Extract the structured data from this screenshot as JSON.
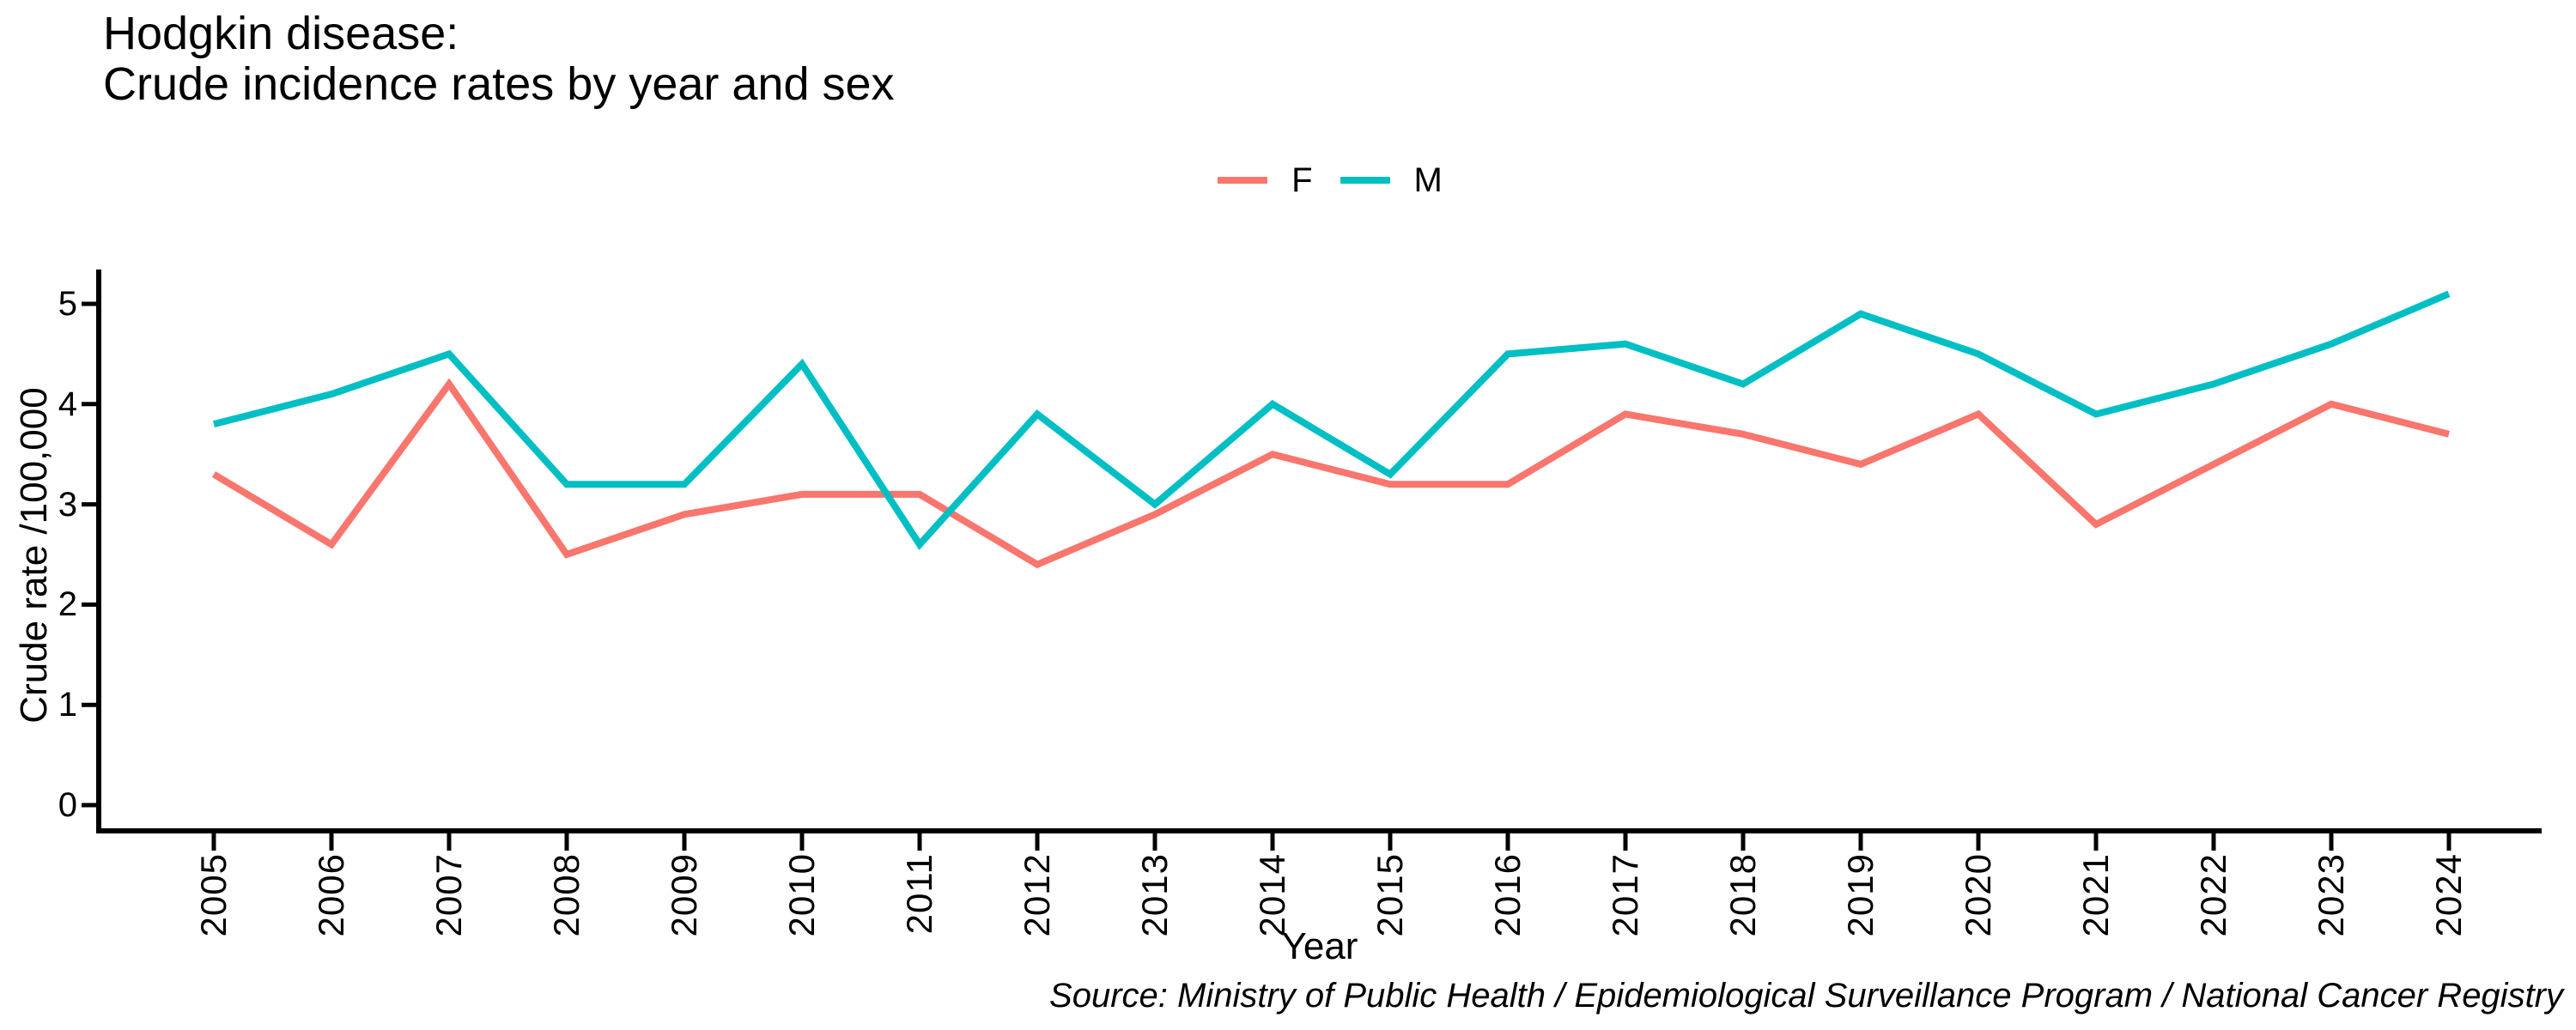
{
  "title": {
    "line1": "Hodgkin disease:",
    "line2": "Crude incidence rates by year and sex"
  },
  "legend": {
    "items": [
      {
        "label": "F",
        "color": "#F8766D"
      },
      {
        "label": "M",
        "color": "#00BFC4"
      }
    ]
  },
  "axes": {
    "y_title": "Crude rate /100,000",
    "x_title": "Year"
  },
  "source": "Source: Ministry of Public Health / Epidemiological Surveillance Program / National Cancer Registry",
  "colors": {
    "female_line": "#F8766D",
    "male_line": "#00BFC4",
    "axis": "#000000",
    "background": "#FFFFFF"
  },
  "chart_data": {
    "type": "line",
    "title": "Hodgkin disease: Crude incidence rates by year and sex",
    "xlabel": "Year",
    "ylabel": "Crude rate /100,000",
    "x": [
      2005,
      2006,
      2007,
      2008,
      2009,
      2010,
      2011,
      2012,
      2013,
      2014,
      2015,
      2016,
      2017,
      2018,
      2019,
      2020,
      2021,
      2022,
      2023,
      2024
    ],
    "series": [
      {
        "name": "F",
        "color": "#F8766D",
        "values": [
          3.3,
          2.6,
          4.2,
          2.5,
          2.9,
          3.1,
          3.1,
          2.4,
          2.9,
          3.5,
          3.2,
          3.2,
          3.9,
          3.7,
          3.4,
          3.9,
          2.8,
          3.4,
          4.0,
          3.7
        ]
      },
      {
        "name": "M",
        "color": "#00BFC4",
        "values": [
          3.8,
          4.1,
          4.5,
          3.2,
          3.2,
          4.4,
          2.6,
          3.9,
          3.0,
          4.0,
          3.3,
          4.5,
          4.6,
          4.2,
          4.9,
          4.5,
          3.9,
          4.2,
          4.6,
          5.1
        ]
      }
    ],
    "ylim": [
      0,
      5.36
    ],
    "yticks": [
      0,
      1,
      2,
      3,
      4,
      5
    ],
    "grid": false,
    "legend_position": "top-center"
  }
}
